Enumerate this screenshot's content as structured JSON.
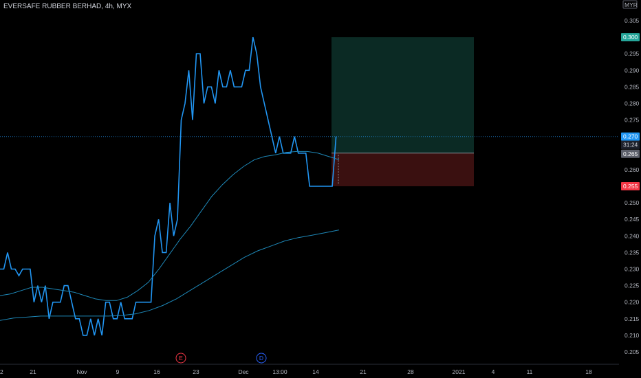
{
  "header": {
    "title": "EVERSAFE RUBBER BERHAD, 4h, MYX"
  },
  "currency_label": "MYR",
  "tags": {
    "target": "0.300",
    "last": "0.270",
    "countdown": "31:24",
    "entry": "0.265",
    "stop": "0.255"
  },
  "events": {
    "earnings": "E",
    "dividend": "D"
  },
  "colors": {
    "price_line": "#2196f3",
    "ma": "#1e88b8",
    "profit_zone": "#0b2a24",
    "loss_zone": "#3a1010",
    "target_tag": "#26a69a",
    "stop_tag": "#f23645",
    "last_tag": "#2196f3",
    "entry_tag": "#5d606b"
  },
  "chart_data": {
    "type": "line",
    "title": "EVERSAFE RUBBER BERHAD, 4h, MYX",
    "ylim": [
      0.2025,
      0.3105
    ],
    "y_ticks": [
      "0.205",
      "0.210",
      "0.215",
      "0.220",
      "0.225",
      "0.230",
      "0.235",
      "0.240",
      "0.245",
      "0.250",
      "0.255",
      "0.260",
      "0.265",
      "0.270",
      "0.275",
      "0.280",
      "0.285",
      "0.290",
      "0.295",
      "0.300",
      "0.305"
    ],
    "x_ticks": [
      "21",
      "Nov",
      "9",
      "16",
      "23",
      "Dec",
      "13:00",
      "14",
      "21",
      "28",
      "2021",
      "4",
      "11",
      "18"
    ],
    "x_tick_note": "first tick partially clipped: '2'",
    "series": [
      {
        "values": [
          0.23,
          0.23,
          0.235,
          0.23,
          0.23,
          0.228,
          0.23,
          0.23,
          0.23,
          0.22,
          0.225,
          0.22,
          0.225,
          0.215,
          0.22,
          0.22,
          0.22,
          0.225,
          0.225,
          0.22,
          0.215,
          0.215,
          0.21,
          0.21,
          0.215,
          0.21,
          0.215,
          0.21,
          0.22,
          0.22,
          0.215,
          0.215,
          0.22,
          0.215,
          0.215,
          0.215,
          0.22,
          0.22,
          0.22,
          0.22,
          0.22,
          0.24,
          0.245,
          0.235,
          0.235,
          0.25,
          0.24,
          0.245,
          0.275,
          0.28,
          0.29,
          0.275,
          0.295,
          0.295,
          0.28,
          0.285,
          0.285,
          0.28,
          0.29,
          0.285,
          0.285,
          0.29,
          0.285,
          0.285,
          0.285,
          0.29,
          0.29,
          0.3,
          0.295,
          0.285,
          0.28,
          0.275,
          0.27,
          0.265,
          0.27,
          0.265,
          0.265,
          0.265,
          0.27,
          0.265,
          0.265,
          0.265,
          0.255,
          0.255,
          0.255,
          0.255,
          0.255,
          0.255,
          0.255,
          0.27
        ]
      },
      {
        "values": [
          0.222,
          0.2225,
          0.2235,
          0.2245,
          0.2245,
          0.224,
          0.2235,
          0.223,
          0.222,
          0.221,
          0.2205,
          0.2205,
          0.2215,
          0.2235,
          0.226,
          0.23,
          0.2345,
          0.239,
          0.243,
          0.2475,
          0.252,
          0.2555,
          0.2585,
          0.261,
          0.263,
          0.264,
          0.2645,
          0.2652,
          0.2655,
          0.2655,
          0.265,
          0.264,
          0.263
        ]
      },
      {
        "values": [
          0.2145,
          0.2152,
          0.2155,
          0.2158,
          0.2158,
          0.2158,
          0.2158,
          0.2158,
          0.2158,
          0.216,
          0.2165,
          0.2175,
          0.219,
          0.221,
          0.2235,
          0.226,
          0.2285,
          0.231,
          0.2335,
          0.2355,
          0.237,
          0.2385,
          0.2395,
          0.2402,
          0.241,
          0.2418
        ]
      }
    ],
    "position": {
      "target": 0.3,
      "entry": 0.265,
      "stop": 0.255,
      "current": 0.27
    },
    "grid": false
  }
}
